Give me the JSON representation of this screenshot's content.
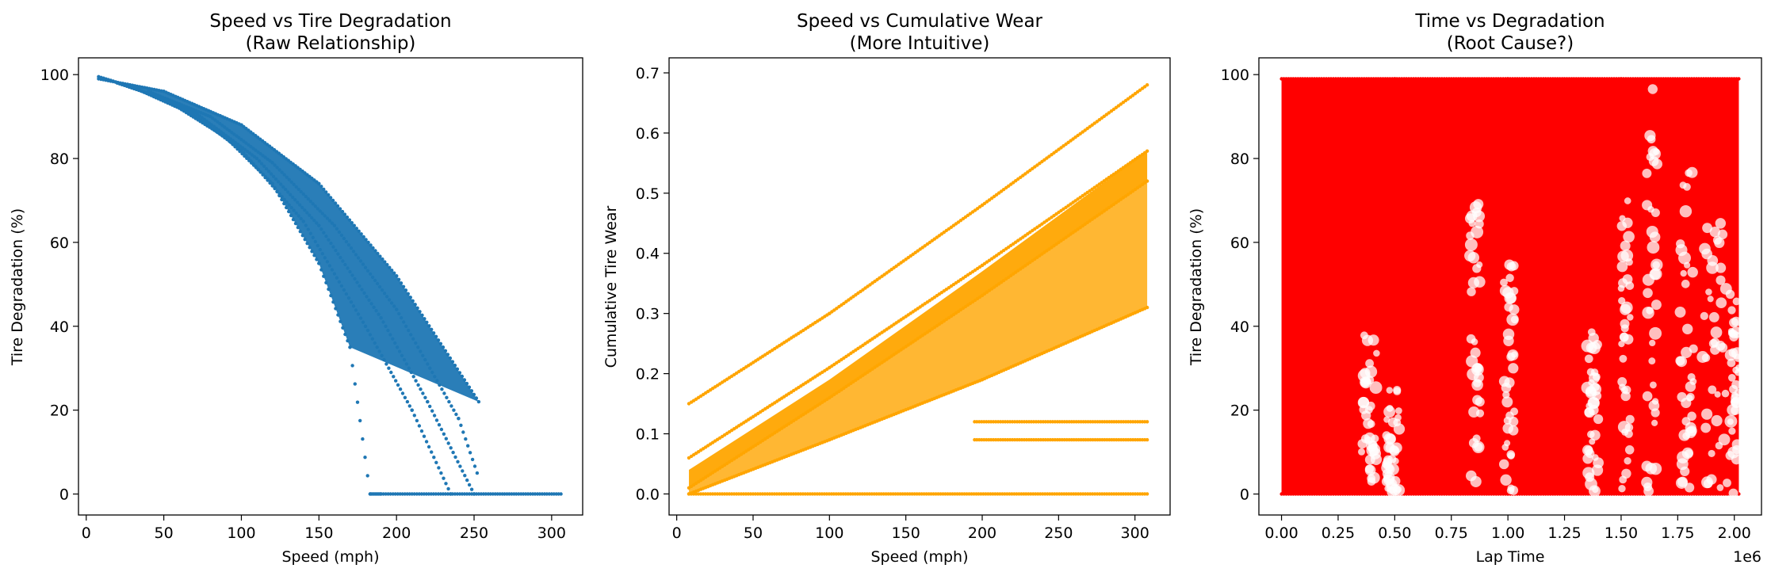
{
  "chart_data": [
    {
      "type": "scatter",
      "title": "Speed vs Tire Degradation\n(Raw Relationship)",
      "title_lines": [
        "Speed vs Tire Degradation",
        "(Raw Relationship)"
      ],
      "xlabel": "Speed (mph)",
      "ylabel": "Tire Degradation (%)",
      "xlim": [
        -5,
        320
      ],
      "ylim": [
        -5,
        104
      ],
      "xticks": [
        0,
        50,
        100,
        150,
        200,
        250,
        300
      ],
      "yticks": [
        0,
        20,
        40,
        60,
        80,
        100
      ],
      "color": "#1f77b4",
      "grid": false,
      "legend": "none",
      "series": [
        {
          "x": [
            8,
            30,
            60,
            90,
            120,
            150,
            170,
            183,
            190,
            250,
            306
          ],
          "y": [
            99.5,
            97,
            92,
            85,
            74,
            55,
            35,
            0,
            0,
            0,
            0
          ]
        },
        {
          "x": [
            8,
            50,
            100,
            150,
            200,
            230,
            253
          ],
          "y": [
            99,
            96,
            88,
            74,
            52,
            35,
            22
          ]
        },
        {
          "x": [
            20,
            60,
            100,
            140,
            180,
            210,
            235
          ],
          "y": [
            98,
            93,
            82,
            65,
            40,
            20,
            0
          ]
        },
        {
          "x": [
            30,
            70,
            110,
            150,
            190,
            220,
            250
          ],
          "y": [
            97,
            91,
            80,
            64,
            42,
            22,
            0
          ]
        },
        {
          "x": [
            40,
            80,
            120,
            160,
            200,
            240,
            252
          ],
          "y": [
            96,
            90,
            79,
            64,
            44,
            18,
            5
          ]
        }
      ]
    },
    {
      "type": "scatter",
      "title": "Speed vs Cumulative Wear\n(More Intuitive)",
      "title_lines": [
        "Speed vs Cumulative Wear",
        "(More Intuitive)"
      ],
      "xlabel": "Speed (mph)",
      "ylabel": "Cumulative Tire Wear",
      "xlim": [
        -5,
        323
      ],
      "ylim": [
        -0.035,
        0.725
      ],
      "xticks": [
        0,
        50,
        100,
        150,
        200,
        250,
        300
      ],
      "yticks": [
        0.0,
        0.1,
        0.2,
        0.3,
        0.4,
        0.5,
        0.6,
        0.7
      ],
      "ytick_labels": [
        "0.0",
        "0.1",
        "0.2",
        "0.3",
        "0.4",
        "0.5",
        "0.6",
        "0.7"
      ],
      "color": "#ffa500",
      "grid": false,
      "legend": "none",
      "series": [
        {
          "x": [
            8,
            100,
            200,
            308
          ],
          "y": [
            0.15,
            0.3,
            0.48,
            0.68
          ]
        },
        {
          "x": [
            8,
            100,
            200,
            308
          ],
          "y": [
            0.01,
            0.16,
            0.33,
            0.52
          ]
        },
        {
          "x": [
            8,
            100,
            200,
            308
          ],
          "y": [
            0.06,
            0.21,
            0.38,
            0.57
          ]
        },
        {
          "x": [
            8,
            100,
            200,
            308
          ],
          "y": [
            0.0,
            0.09,
            0.19,
            0.31
          ]
        },
        {
          "x": [
            8,
            308
          ],
          "y": [
            0.0,
            0.0
          ]
        },
        {
          "x": [
            195,
            308
          ],
          "y": [
            0.12,
            0.12
          ]
        },
        {
          "x": [
            195,
            308
          ],
          "y": [
            0.09,
            0.09
          ]
        }
      ]
    },
    {
      "type": "scatter",
      "title": "Time vs Degradation\n(Root Cause?)",
      "title_lines": [
        "Time vs Degradation",
        "(Root Cause?)"
      ],
      "xlabel": "Lap Time",
      "ylabel": "Tire Degradation (%)",
      "x_offset_text": "1e6",
      "xlim": [
        -0.1,
        2.12
      ],
      "ylim": [
        -5,
        104
      ],
      "xticks": [
        0.0,
        0.25,
        0.5,
        0.75,
        1.0,
        1.25,
        1.5,
        1.75,
        2.0
      ],
      "xtick_labels": [
        "0.00",
        "0.25",
        "0.50",
        "0.75",
        "1.00",
        "1.25",
        "1.50",
        "1.75",
        "2.00"
      ],
      "yticks": [
        0,
        20,
        40,
        60,
        80,
        100
      ],
      "color": "#ff0000",
      "grid": false,
      "legend": "none",
      "series": [
        {
          "x": [
            0.0,
            0.5,
            1.0,
            1.5,
            2.02
          ],
          "y": [
            0,
            0,
            0,
            0,
            0
          ]
        },
        {
          "x": [
            0.0,
            0.5,
            1.0,
            1.5,
            2.02
          ],
          "y": [
            99,
            99,
            99,
            99,
            99
          ]
        }
      ]
    }
  ]
}
